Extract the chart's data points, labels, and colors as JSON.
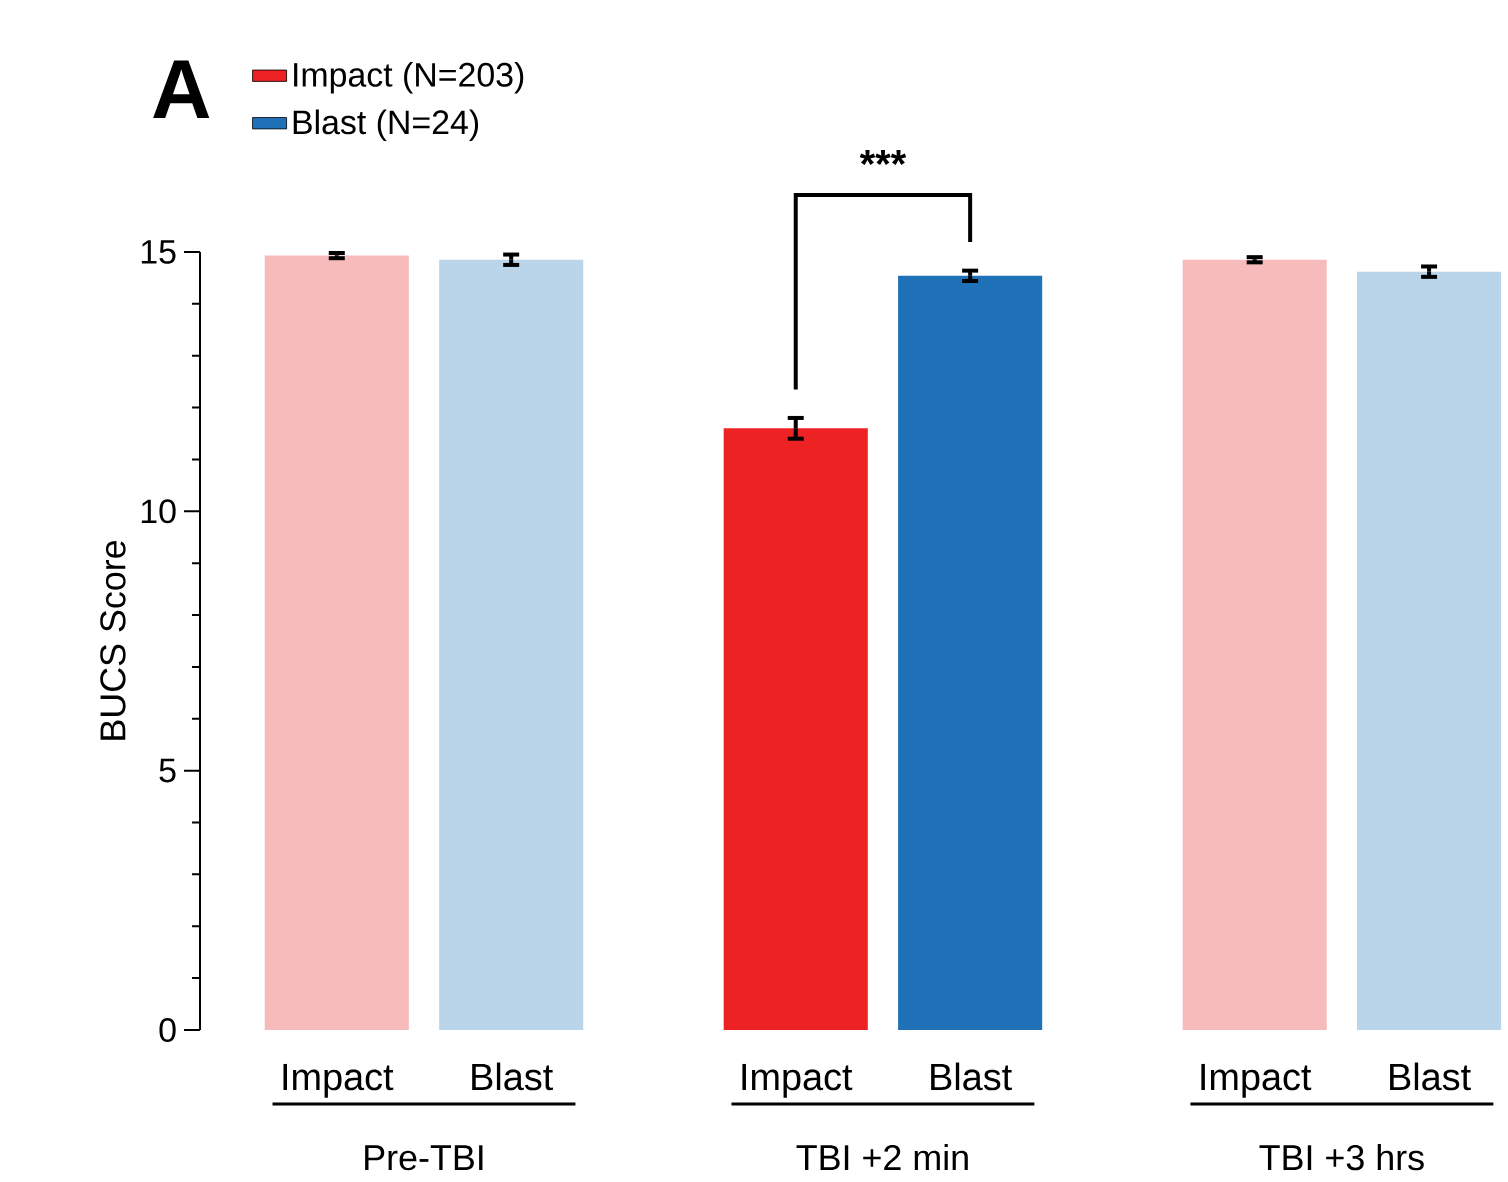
{
  "chart_data": {
    "type": "bar",
    "title": "A",
    "ylabel": "BUCS Score",
    "categories": [
      "Pre-TBI",
      "TBI +2 min",
      "TBI +3 hrs"
    ],
    "series": [
      {
        "name": "Impact (N=203)",
        "color": "#ed2224",
        "colors": [
          "#f7bbbc",
          "#ed2224",
          "#f7bbbc"
        ],
        "values": [
          14.93,
          11.6,
          14.85
        ],
        "errors": [
          0.05,
          0.2,
          0.05
        ]
      },
      {
        "name": "Blast (N=24)",
        "color": "#1f71b8",
        "colors": [
          "#bad5ea",
          "#1f71b8",
          "#bad5ea"
        ],
        "values": [
          14.85,
          14.54,
          14.62
        ],
        "errors": [
          0.1,
          0.1,
          0.1
        ]
      }
    ],
    "ylim": [
      0,
      15
    ],
    "yticks": [
      0,
      5,
      10,
      15
    ],
    "annotations": [
      "Impact",
      "Blast",
      "Impact",
      "Blast",
      "Impact",
      "Blast",
      "***"
    ],
    "legend": "top left",
    "grid": false
  }
}
